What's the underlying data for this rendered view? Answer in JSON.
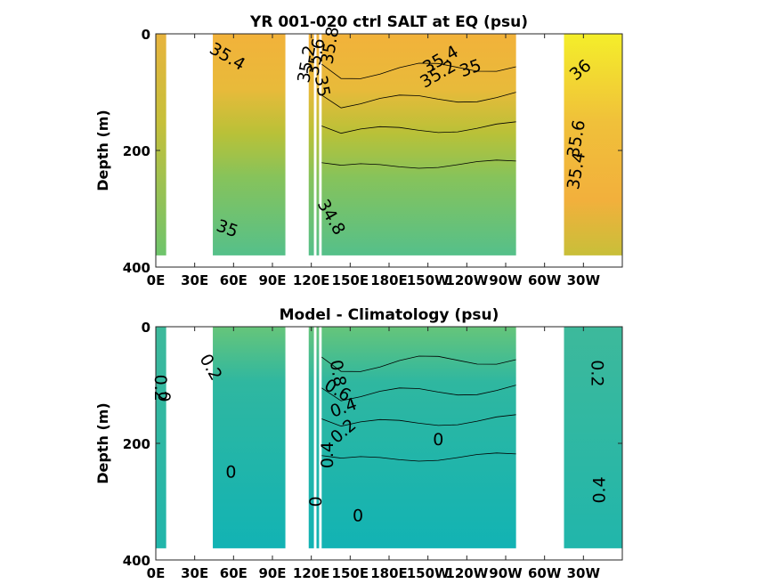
{
  "chart_data": [
    {
      "type": "heatmap",
      "title": "YR 001-020 ctrl SALT at EQ (psu)",
      "xlabel": "",
      "ylabel": "Depth (m)",
      "x_ticks": [
        "0E",
        "30E",
        "60E",
        "90E",
        "120E",
        "150E",
        "180E",
        "150W",
        "120W",
        "90W",
        "60W",
        "30W"
      ],
      "y_ticks": [
        "0",
        "200",
        "400"
      ],
      "xlim": [
        0,
        360
      ],
      "ylim": [
        400,
        0
      ],
      "colormap": "parula",
      "fill_regions": [
        {
          "x0": 0,
          "x1": 8,
          "z": 0.78
        },
        {
          "x0": 44,
          "x1": 100,
          "z": 0.62
        },
        {
          "x0": 118,
          "x1": 122,
          "z": 0.35
        },
        {
          "x0": 124,
          "x1": 126,
          "z": 0.32
        },
        {
          "x0": 128,
          "x1": 278,
          "z": 0.62
        },
        {
          "x0": 315,
          "x1": 360,
          "z": 0.85
        }
      ],
      "contour_labels": [
        {
          "text": "35.4",
          "x": 55,
          "y": 40,
          "angle": 30
        },
        {
          "text": "35.6",
          "x": 124,
          "y": 40,
          "angle": -80
        },
        {
          "text": "35.2",
          "x": 117,
          "y": 52,
          "angle": -80
        },
        {
          "text": "35.8",
          "x": 135,
          "y": 20,
          "angle": -80
        },
        {
          "text": "35",
          "x": 128,
          "y": 90,
          "angle": 80
        },
        {
          "text": "35.4",
          "x": 220,
          "y": 45,
          "angle": -30
        },
        {
          "text": "35.2",
          "x": 218,
          "y": 70,
          "angle": -30
        },
        {
          "text": "35",
          "x": 243,
          "y": 60,
          "angle": -20
        },
        {
          "text": "36",
          "x": 328,
          "y": 63,
          "angle": -40
        },
        {
          "text": "35.6",
          "x": 325,
          "y": 180,
          "angle": -80
        },
        {
          "text": "35.4",
          "x": 325,
          "y": 235,
          "angle": -80
        },
        {
          "text": "34.8",
          "x": 135,
          "y": 315,
          "angle": 60
        },
        {
          "text": "35",
          "x": 55,
          "y": 335,
          "angle": 20
        }
      ]
    },
    {
      "type": "heatmap",
      "title": "Model - Climatology (psu)",
      "xlabel": "",
      "ylabel": "Depth (m)",
      "x_ticks": [
        "0E",
        "30E",
        "60E",
        "90E",
        "120E",
        "150E",
        "180E",
        "150W",
        "120W",
        "90W",
        "60W",
        "30W"
      ],
      "y_ticks": [
        "0",
        "200",
        "400"
      ],
      "xlim": [
        0,
        360
      ],
      "ylim": [
        400,
        0
      ],
      "colormap": "parula",
      "fill_regions": [
        {
          "x0": 0,
          "x1": 8,
          "z": 0.52
        },
        {
          "x0": 44,
          "x1": 100,
          "z": 0.48
        },
        {
          "x0": 118,
          "x1": 122,
          "z": 0.48
        },
        {
          "x0": 124,
          "x1": 126,
          "z": 0.45
        },
        {
          "x0": 128,
          "x1": 278,
          "z": 0.46
        },
        {
          "x0": 315,
          "x1": 360,
          "z": 0.52
        }
      ],
      "contour_labels": [
        {
          "text": "0.2",
          "x": 42,
          "y": 70,
          "angle": 60
        },
        {
          "text": "0.2",
          "x": 3,
          "y": 105,
          "angle": 90
        },
        {
          "text": "0",
          "x": 6,
          "y": 120,
          "angle": 90
        },
        {
          "text": "0.8",
          "x": 140,
          "y": 80,
          "angle": 80
        },
        {
          "text": "0.6",
          "x": 140,
          "y": 110,
          "angle": 30
        },
        {
          "text": "0.4",
          "x": 145,
          "y": 140,
          "angle": -20
        },
        {
          "text": "0.2",
          "x": 145,
          "y": 180,
          "angle": -40
        },
        {
          "text": "0",
          "x": 218,
          "y": 195,
          "angle": 0
        },
        {
          "text": "0",
          "x": 58,
          "y": 250,
          "angle": 0
        },
        {
          "text": "0.2",
          "x": 340,
          "y": 80,
          "angle": 90
        },
        {
          "text": "0.4",
          "x": 343,
          "y": 280,
          "angle": -90
        },
        {
          "text": "0",
          "x": 124,
          "y": 300,
          "angle": -90
        },
        {
          "text": "0.4",
          "x": 133,
          "y": 220,
          "angle": -90
        },
        {
          "text": "0",
          "x": 156,
          "y": 325,
          "angle": 0
        }
      ]
    }
  ]
}
